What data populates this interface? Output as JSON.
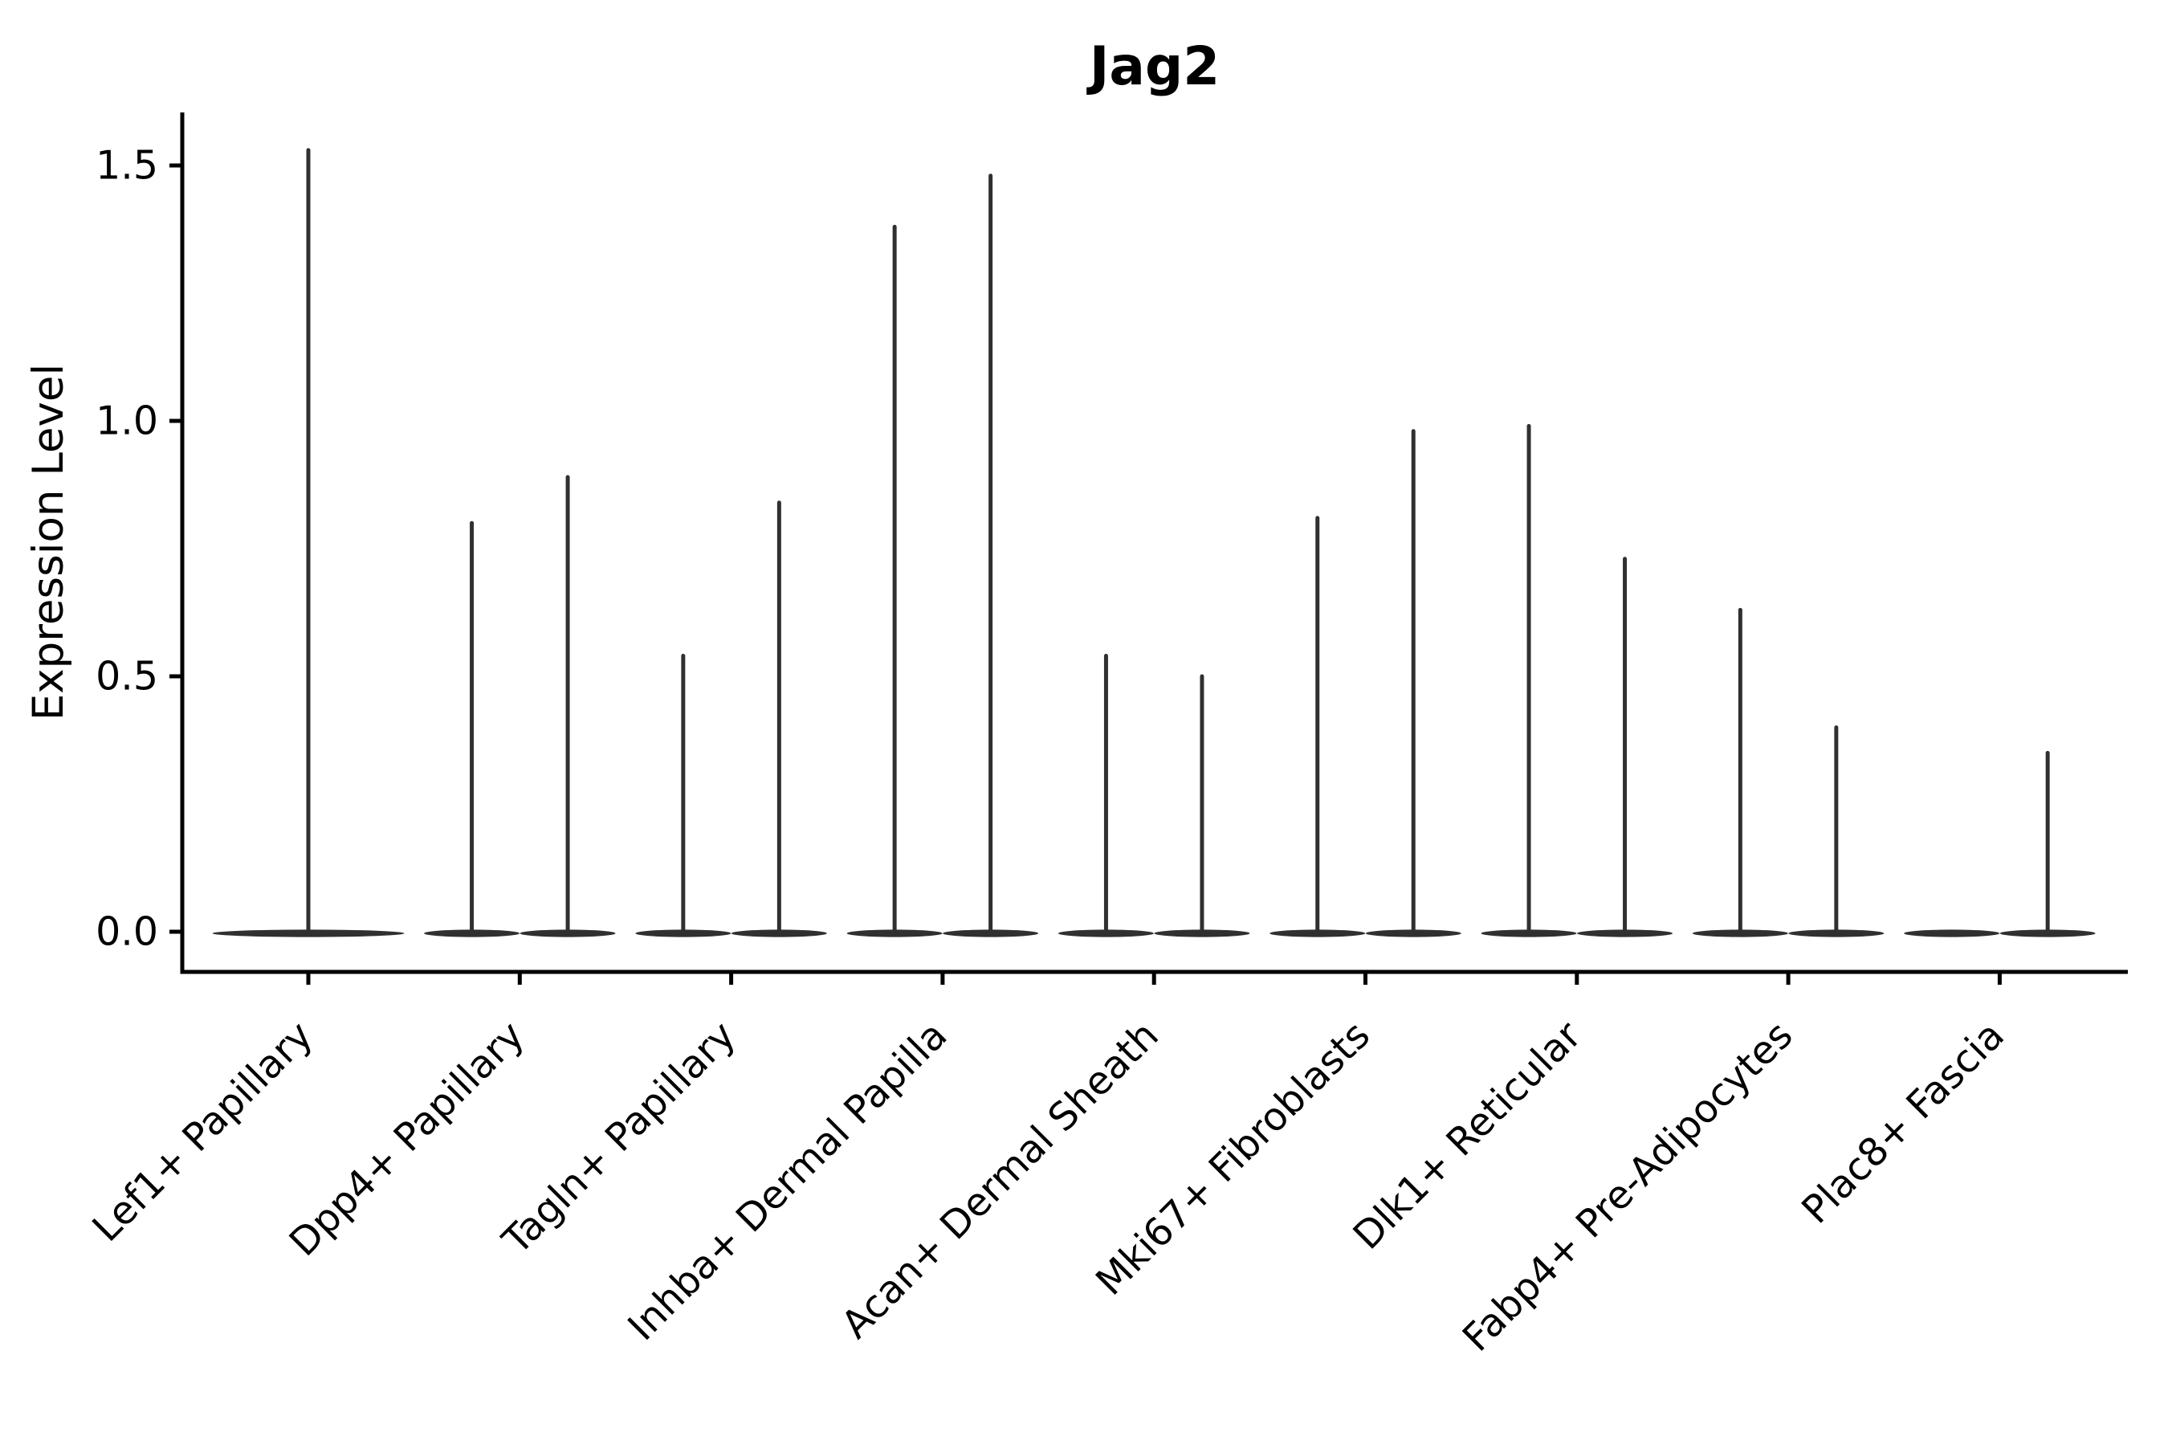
{
  "figure": {
    "title": "Jag2",
    "ylabel": "Expression Level"
  },
  "colors": {
    "violin": "#303030",
    "axis": "#000000",
    "text": "#000000",
    "background": "#ffffff"
  },
  "chart_data": {
    "type": "violin",
    "title": "Jag2",
    "ylabel": "Expression Level",
    "ylim": [
      -0.08,
      1.61
    ],
    "yticks": [
      0.0,
      0.5,
      1.0,
      1.5
    ],
    "grid": false,
    "legend_position": "none",
    "categories": [
      "Lef1+ Papillary",
      "Dpp4+ Papillary",
      "Tagln+ Papillary",
      "Inhba+ Dermal Papilla",
      "Acan+ Dermal Sheath",
      "Mki67+ Fibroblasts",
      "Dlk1+ Reticular",
      "Fabp4+ Pre-Adipocytes",
      "Plac8+ Fascia"
    ],
    "violins": [
      {
        "category": "Lef1+ Papillary",
        "parts": [
          {
            "group": "full",
            "max": 1.53
          }
        ]
      },
      {
        "category": "Dpp4+ Papillary",
        "parts": [
          {
            "group": "left",
            "max": 0.8
          },
          {
            "group": "right",
            "max": 0.89
          }
        ]
      },
      {
        "category": "Tagln+ Papillary",
        "parts": [
          {
            "group": "left",
            "max": 0.54
          },
          {
            "group": "right",
            "max": 0.84
          }
        ]
      },
      {
        "category": "Inhba+ Dermal Papilla",
        "parts": [
          {
            "group": "left",
            "max": 1.38
          },
          {
            "group": "right",
            "max": 1.48
          }
        ]
      },
      {
        "category": "Acan+ Dermal Sheath",
        "parts": [
          {
            "group": "left",
            "max": 0.54
          },
          {
            "group": "right",
            "max": 0.5
          }
        ]
      },
      {
        "category": "Mki67+ Fibroblasts",
        "parts": [
          {
            "group": "left",
            "max": 0.81
          },
          {
            "group": "right",
            "max": 0.98
          }
        ]
      },
      {
        "category": "Dlk1+ Reticular",
        "parts": [
          {
            "group": "left",
            "max": 0.99
          },
          {
            "group": "right",
            "max": 0.73
          }
        ]
      },
      {
        "category": "Fabp4+ Pre-Adipocytes",
        "parts": [
          {
            "group": "left",
            "max": 0.63
          },
          {
            "group": "right",
            "max": 0.4
          }
        ]
      },
      {
        "category": "Plac8+ Fascia",
        "parts": [
          {
            "group": "left",
            "max": 0.0
          },
          {
            "group": "right",
            "max": 0.35
          }
        ]
      }
    ]
  }
}
